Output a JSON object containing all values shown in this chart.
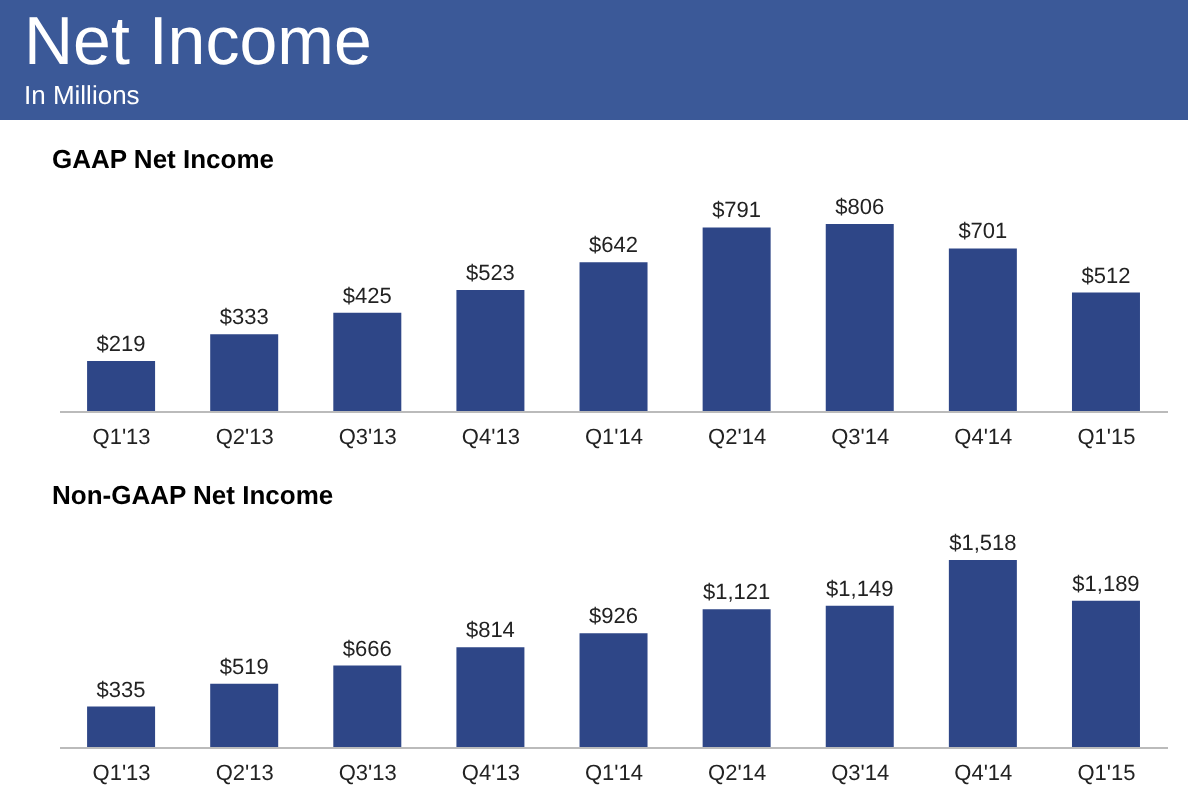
{
  "chart_data": [
    {
      "type": "other",
      "title": "Net Income",
      "subtitle": "In Millions"
    },
    {
      "type": "bar",
      "title": "GAAP Net Income",
      "categories": [
        "Q1'13",
        "Q2'13",
        "Q3'13",
        "Q4'13",
        "Q1'14",
        "Q2'14",
        "Q3'14",
        "Q4'14",
        "Q1'15"
      ],
      "values": [
        219,
        333,
        425,
        523,
        642,
        791,
        806,
        701,
        512
      ],
      "value_labels": [
        "$219",
        "$333",
        "$425",
        "$523",
        "$642",
        "$791",
        "$806",
        "$701",
        "$512"
      ],
      "color": "#2e4687"
    },
    {
      "type": "bar",
      "title": "Non-GAAP Net Income",
      "categories": [
        "Q1'13",
        "Q2'13",
        "Q3'13",
        "Q4'13",
        "Q1'14",
        "Q2'14",
        "Q3'14",
        "Q4'14",
        "Q1'15"
      ],
      "values": [
        335,
        519,
        666,
        814,
        926,
        1121,
        1149,
        1518,
        1189
      ],
      "value_labels": [
        "$335",
        "$519",
        "$666",
        "$814",
        "$926",
        "$1,121",
        "$1,149",
        "$1,518",
        "$1,189"
      ],
      "color": "#2e4687"
    }
  ]
}
